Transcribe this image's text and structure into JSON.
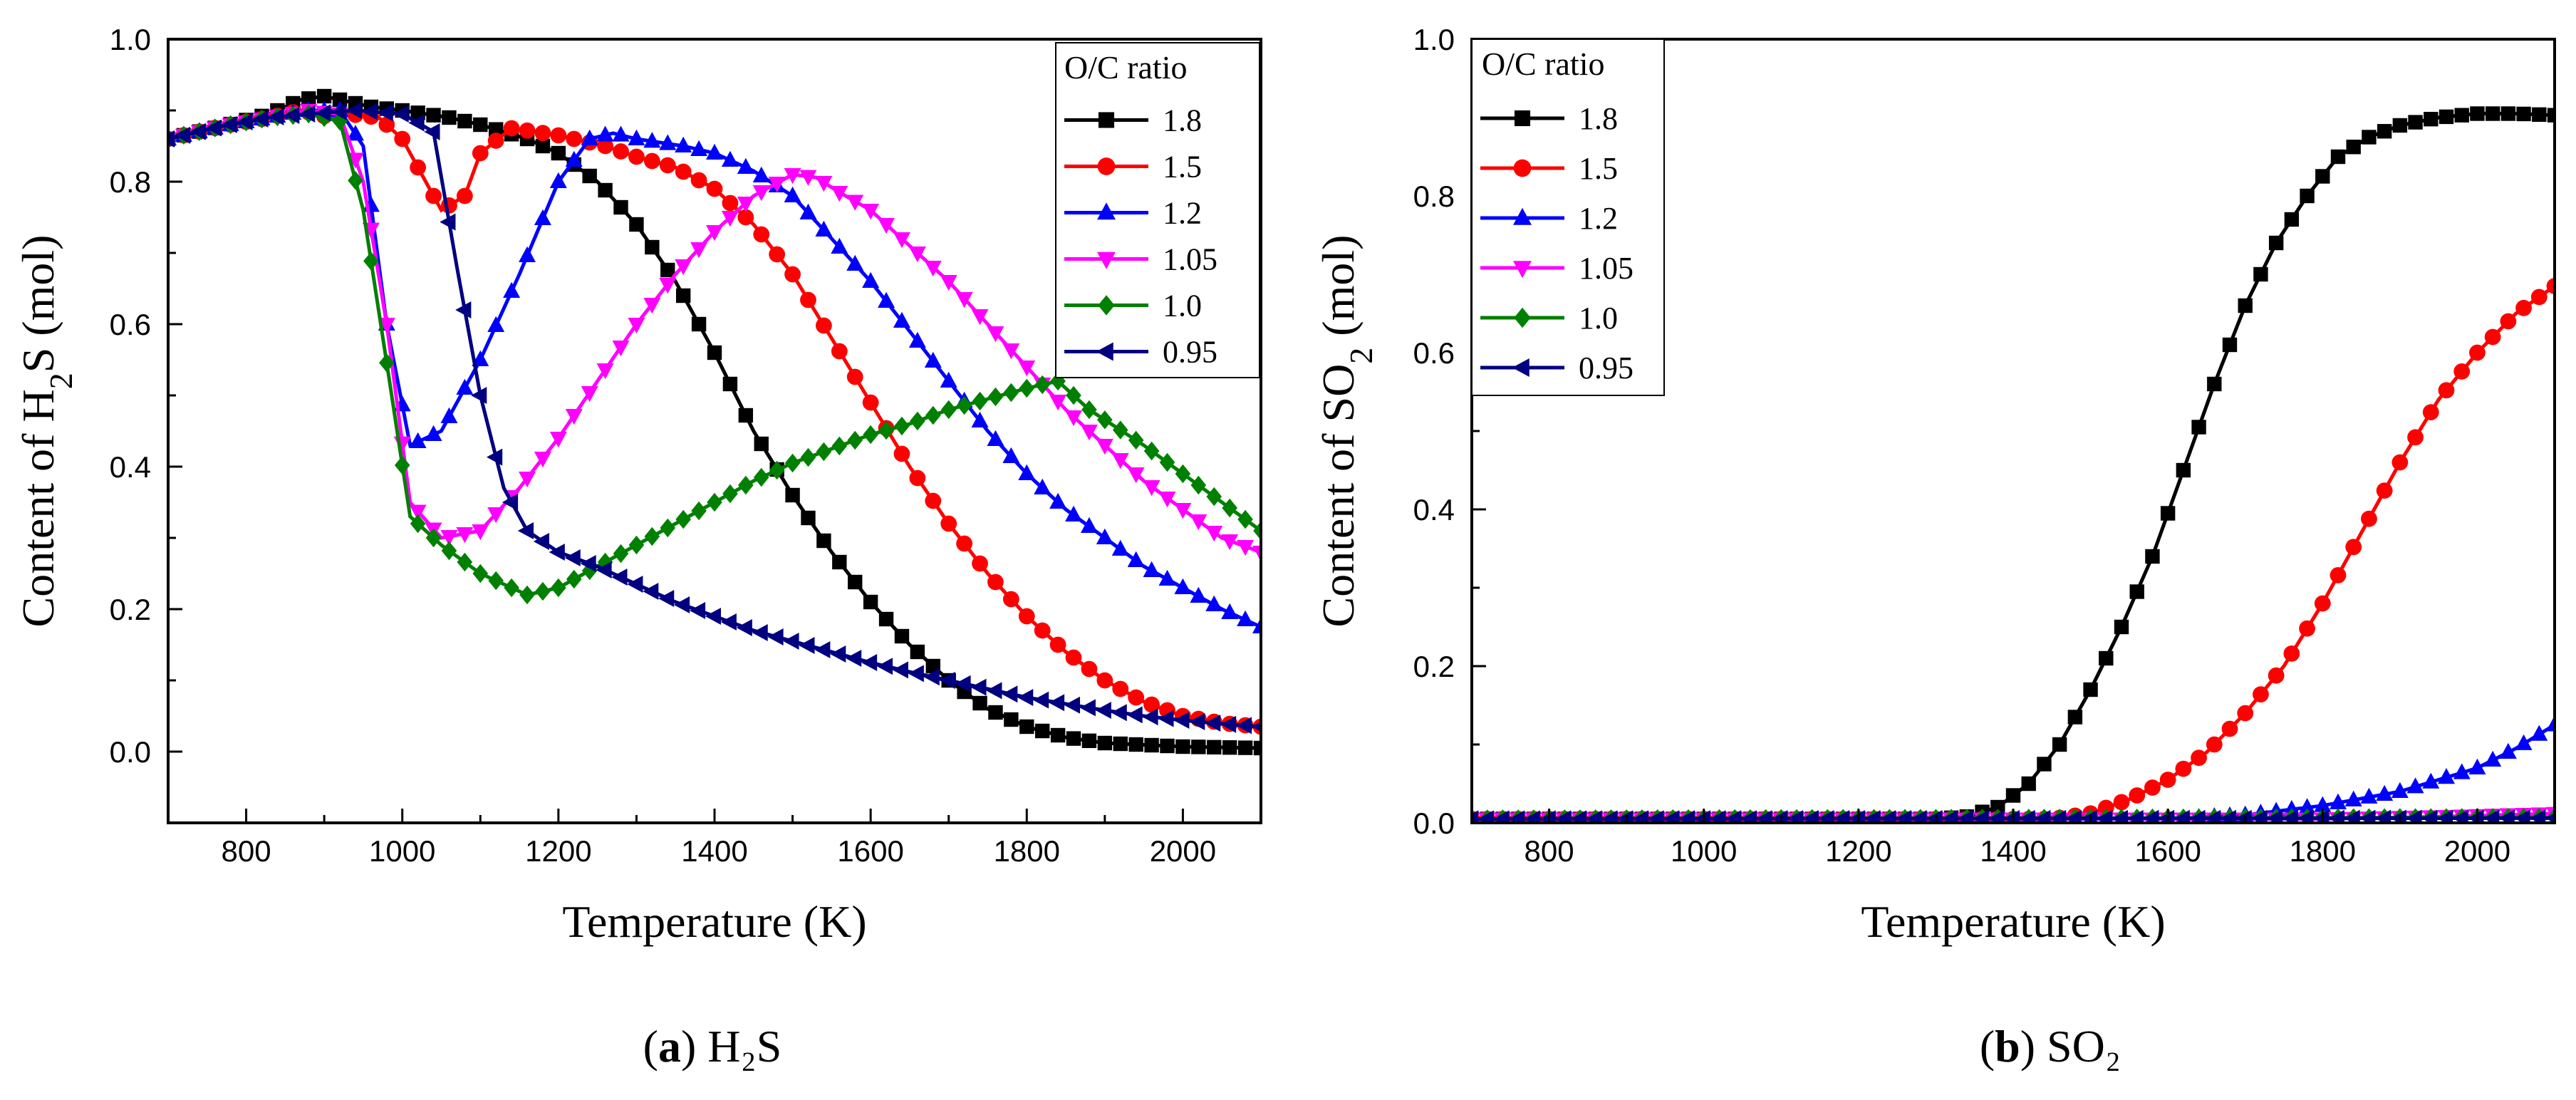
{
  "colors": {
    "1.8": "#000000",
    "1.5": "#ff0000",
    "1.2": "#0000ff",
    "1.05": "#ff00ff",
    "1.0": "#008000",
    "0.95": "#000080"
  },
  "chart_data": [
    {
      "type": "line",
      "title": "",
      "caption": {
        "letter": "a",
        "text": "H₂S"
      },
      "xlabel": "Temperature (K)",
      "ylabel": {
        "prefix": "Content of H",
        "sub": "2",
        "suffix": "S (mol)"
      },
      "xlim": [
        700,
        2100
      ],
      "ylim": [
        -0.1,
        1.0
      ],
      "xticks": [
        "800",
        "1000",
        "1200",
        "1400",
        "1600",
        "1800",
        "2000"
      ],
      "yticks": [
        "0.0",
        "0.2",
        "0.4",
        "0.6",
        "0.8",
        "1.0"
      ],
      "legend": {
        "title": "O/C ratio",
        "position": "top-right"
      },
      "series": [
        {
          "name": "1.8",
          "marker": "square",
          "points": [
            [
              700,
              0.86
            ],
            [
              770,
              0.878
            ],
            [
              830,
              0.895
            ],
            [
              870,
              0.915
            ],
            [
              900,
              0.92
            ],
            [
              960,
              0.905
            ],
            [
              1000,
              0.9
            ],
            [
              1060,
              0.89
            ],
            [
              1100,
              0.88
            ],
            [
              1160,
              0.86
            ],
            [
              1200,
              0.84
            ],
            [
              1250,
              0.8
            ],
            [
              1300,
              0.74
            ],
            [
              1350,
              0.66
            ],
            [
              1400,
              0.56
            ],
            [
              1450,
              0.45
            ],
            [
              1500,
              0.36
            ],
            [
              1550,
              0.28
            ],
            [
              1600,
              0.21
            ],
            [
              1650,
              0.15
            ],
            [
              1700,
              0.1
            ],
            [
              1750,
              0.06
            ],
            [
              1800,
              0.035
            ],
            [
              1850,
              0.02
            ],
            [
              1900,
              0.012
            ],
            [
              2000,
              0.007
            ],
            [
              2100,
              0.005
            ]
          ]
        },
        {
          "name": "1.5",
          "marker": "circle",
          "points": [
            [
              700,
              0.86
            ],
            [
              770,
              0.878
            ],
            [
              830,
              0.89
            ],
            [
              870,
              0.9
            ],
            [
              900,
              0.892
            ],
            [
              930,
              0.895
            ],
            [
              970,
              0.89
            ],
            [
              1000,
              0.86
            ],
            [
              1030,
              0.8
            ],
            [
              1050,
              0.76
            ],
            [
              1080,
              0.78
            ],
            [
              1100,
              0.84
            ],
            [
              1140,
              0.875
            ],
            [
              1200,
              0.865
            ],
            [
              1260,
              0.85
            ],
            [
              1300,
              0.835
            ],
            [
              1350,
              0.82
            ],
            [
              1400,
              0.79
            ],
            [
              1450,
              0.74
            ],
            [
              1500,
              0.67
            ],
            [
              1550,
              0.58
            ],
            [
              1600,
              0.49
            ],
            [
              1650,
              0.4
            ],
            [
              1700,
              0.32
            ],
            [
              1750,
              0.25
            ],
            [
              1800,
              0.19
            ],
            [
              1850,
              0.14
            ],
            [
              1900,
              0.1
            ],
            [
              1950,
              0.07
            ],
            [
              2000,
              0.05
            ],
            [
              2050,
              0.04
            ],
            [
              2100,
              0.035
            ]
          ]
        },
        {
          "name": "1.2",
          "marker": "triangle-up",
          "points": [
            [
              700,
              0.86
            ],
            [
              770,
              0.878
            ],
            [
              830,
              0.89
            ],
            [
              880,
              0.9
            ],
            [
              920,
              0.9
            ],
            [
              950,
              0.85
            ],
            [
              980,
              0.6
            ],
            [
              1010,
              0.43
            ],
            [
              1050,
              0.45
            ],
            [
              1100,
              0.55
            ],
            [
              1150,
              0.67
            ],
            [
              1200,
              0.8
            ],
            [
              1240,
              0.86
            ],
            [
              1270,
              0.868
            ],
            [
              1300,
              0.86
            ],
            [
              1360,
              0.85
            ],
            [
              1400,
              0.84
            ],
            [
              1450,
              0.815
            ],
            [
              1500,
              0.78
            ],
            [
              1550,
              0.72
            ],
            [
              1600,
              0.66
            ],
            [
              1650,
              0.59
            ],
            [
              1700,
              0.52
            ],
            [
              1750,
              0.45
            ],
            [
              1800,
              0.39
            ],
            [
              1850,
              0.34
            ],
            [
              1900,
              0.3
            ],
            [
              1950,
              0.26
            ],
            [
              2000,
              0.23
            ],
            [
              2050,
              0.2
            ],
            [
              2100,
              0.175
            ]
          ]
        },
        {
          "name": "1.05",
          "marker": "triangle-down",
          "points": [
            [
              700,
              0.86
            ],
            [
              770,
              0.878
            ],
            [
              830,
              0.89
            ],
            [
              880,
              0.9
            ],
            [
              920,
              0.895
            ],
            [
              950,
              0.8
            ],
            [
              980,
              0.6
            ],
            [
              1010,
              0.35
            ],
            [
              1050,
              0.3
            ],
            [
              1100,
              0.31
            ],
            [
              1150,
              0.37
            ],
            [
              1200,
              0.44
            ],
            [
              1250,
              0.52
            ],
            [
              1300,
              0.6
            ],
            [
              1350,
              0.67
            ],
            [
              1400,
              0.73
            ],
            [
              1450,
              0.78
            ],
            [
              1500,
              0.81
            ],
            [
              1530,
              0.806
            ],
            [
              1560,
              0.785
            ],
            [
              1600,
              0.76
            ],
            [
              1650,
              0.71
            ],
            [
              1700,
              0.66
            ],
            [
              1750,
              0.6
            ],
            [
              1800,
              0.54
            ],
            [
              1850,
              0.48
            ],
            [
              1900,
              0.43
            ],
            [
              1950,
              0.38
            ],
            [
              2000,
              0.34
            ],
            [
              2050,
              0.3
            ],
            [
              2100,
              0.28
            ]
          ]
        },
        {
          "name": "1.0",
          "marker": "diamond",
          "points": [
            [
              700,
              0.86
            ],
            [
              770,
              0.878
            ],
            [
              830,
              0.89
            ],
            [
              880,
              0.895
            ],
            [
              920,
              0.885
            ],
            [
              950,
              0.76
            ],
            [
              985,
              0.51
            ],
            [
              1010,
              0.33
            ],
            [
              1050,
              0.29
            ],
            [
              1100,
              0.25
            ],
            [
              1160,
              0.22
            ],
            [
              1200,
              0.23
            ],
            [
              1250,
              0.26
            ],
            [
              1300,
              0.29
            ],
            [
              1350,
              0.32
            ],
            [
              1400,
              0.35
            ],
            [
              1450,
              0.38
            ],
            [
              1500,
              0.405
            ],
            [
              1550,
              0.425
            ],
            [
              1600,
              0.445
            ],
            [
              1650,
              0.46
            ],
            [
              1700,
              0.48
            ],
            [
              1750,
              0.495
            ],
            [
              1800,
              0.51
            ],
            [
              1840,
              0.52
            ],
            [
              1880,
              0.48
            ],
            [
              1950,
              0.43
            ],
            [
              2000,
              0.39
            ],
            [
              2050,
              0.35
            ],
            [
              2100,
              0.31
            ]
          ]
        },
        {
          "name": "0.95",
          "marker": "triangle-left",
          "points": [
            [
              700,
              0.86
            ],
            [
              770,
              0.878
            ],
            [
              830,
              0.89
            ],
            [
              880,
              0.895
            ],
            [
              940,
              0.9
            ],
            [
              1000,
              0.895
            ],
            [
              1040,
              0.87
            ],
            [
              1070,
              0.68
            ],
            [
              1100,
              0.5
            ],
            [
              1130,
              0.37
            ],
            [
              1160,
              0.31
            ],
            [
              1200,
              0.28
            ],
            [
              1250,
              0.26
            ],
            [
              1300,
              0.235
            ],
            [
              1350,
              0.21
            ],
            [
              1400,
              0.19
            ],
            [
              1450,
              0.17
            ],
            [
              1500,
              0.155
            ],
            [
              1550,
              0.14
            ],
            [
              1600,
              0.125
            ],
            [
              1650,
              0.112
            ],
            [
              1700,
              0.1
            ],
            [
              1750,
              0.088
            ],
            [
              1800,
              0.076
            ],
            [
              1850,
              0.067
            ],
            [
              1900,
              0.058
            ],
            [
              1950,
              0.05
            ],
            [
              2000,
              0.044
            ],
            [
              2050,
              0.039
            ],
            [
              2100,
              0.035
            ]
          ]
        }
      ]
    },
    {
      "type": "line",
      "title": "",
      "caption": {
        "letter": "b",
        "text": "SO₂"
      },
      "xlabel": "Temperature (K)",
      "ylabel": {
        "prefix": "Content of SO",
        "sub": "2",
        "suffix": " (mol)"
      },
      "xlim": [
        700,
        2100
      ],
      "ylim": [
        0,
        1.0
      ],
      "xticks": [
        "800",
        "1000",
        "1200",
        "1400",
        "1600",
        "1800",
        "2000"
      ],
      "yticks": [
        "0.0",
        "0.2",
        "0.4",
        "0.6",
        "0.8",
        "1.0"
      ],
      "legend": {
        "title": "O/C ratio",
        "position": "top-left"
      },
      "series": [
        {
          "name": "1.8",
          "marker": "square",
          "points": [
            [
              700,
              0.005
            ],
            [
              1300,
              0.005
            ],
            [
              1340,
              0.008
            ],
            [
              1380,
              0.02
            ],
            [
              1420,
              0.05
            ],
            [
              1460,
              0.1
            ],
            [
              1500,
              0.17
            ],
            [
              1540,
              0.25
            ],
            [
              1580,
              0.34
            ],
            [
              1620,
              0.45
            ],
            [
              1660,
              0.56
            ],
            [
              1700,
              0.66
            ],
            [
              1740,
              0.74
            ],
            [
              1780,
              0.8
            ],
            [
              1820,
              0.85
            ],
            [
              1860,
              0.875
            ],
            [
              1900,
              0.89
            ],
            [
              1950,
              0.9
            ],
            [
              2000,
              0.905
            ],
            [
              2050,
              0.905
            ],
            [
              2100,
              0.903
            ]
          ]
        },
        {
          "name": "1.5",
          "marker": "circle",
          "points": [
            [
              700,
              0.005
            ],
            [
              1450,
              0.005
            ],
            [
              1500,
              0.012
            ],
            [
              1550,
              0.03
            ],
            [
              1600,
              0.055
            ],
            [
              1650,
              0.09
            ],
            [
              1700,
              0.14
            ],
            [
              1750,
              0.2
            ],
            [
              1800,
              0.28
            ],
            [
              1850,
              0.37
            ],
            [
              1900,
              0.46
            ],
            [
              1950,
              0.54
            ],
            [
              2000,
              0.6
            ],
            [
              2050,
              0.65
            ],
            [
              2100,
              0.685
            ]
          ]
        },
        {
          "name": "1.2",
          "marker": "triangle-up",
          "points": [
            [
              700,
              0.005
            ],
            [
              1600,
              0.005
            ],
            [
              1700,
              0.01
            ],
            [
              1800,
              0.022
            ],
            [
              1900,
              0.04
            ],
            [
              2000,
              0.07
            ],
            [
              2050,
              0.095
            ],
            [
              2100,
              0.125
            ]
          ]
        },
        {
          "name": "1.05",
          "marker": "triangle-down",
          "points": [
            [
              700,
              0.005
            ],
            [
              1800,
              0.005
            ],
            [
              1950,
              0.008
            ],
            [
              2100,
              0.012
            ]
          ]
        },
        {
          "name": "1.0",
          "marker": "diamond",
          "points": [
            [
              700,
              0.005
            ],
            [
              2100,
              0.007
            ]
          ]
        },
        {
          "name": "0.95",
          "marker": "triangle-left",
          "points": [
            [
              700,
              0.005
            ],
            [
              2100,
              0.006
            ]
          ]
        }
      ]
    }
  ]
}
